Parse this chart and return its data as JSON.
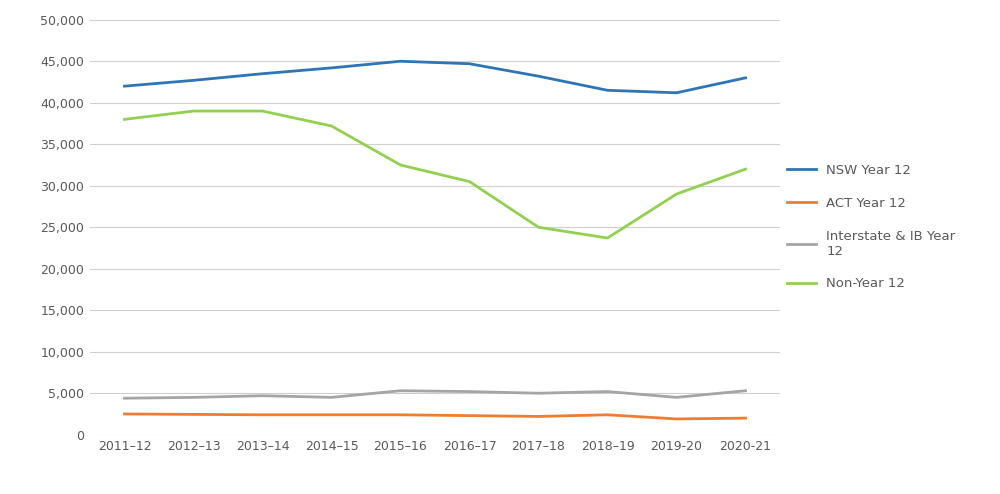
{
  "categories": [
    "2011–12",
    "2012–13",
    "2013–14",
    "2014–15",
    "2015–16",
    "2016–17",
    "2017–18",
    "2018–19",
    "2019-20",
    "2020-21"
  ],
  "series": {
    "NSW Year 12": {
      "values": [
        42000,
        42700,
        43500,
        44200,
        45000,
        44700,
        43200,
        41500,
        41200,
        43000
      ],
      "color": "#2E75B6",
      "linewidth": 2.0
    },
    "ACT Year 12": {
      "values": [
        2500,
        2450,
        2400,
        2400,
        2400,
        2300,
        2200,
        2400,
        1900,
        2000
      ],
      "color": "#ED7D31",
      "linewidth": 2.0
    },
    "Interstate & IB Year 12": {
      "values": [
        4400,
        4500,
        4700,
        4500,
        5300,
        5200,
        5000,
        5200,
        4500,
        5300
      ],
      "color": "#A5A5A5",
      "linewidth": 2.0
    },
    "Non-Year 12": {
      "values": [
        38000,
        39000,
        39000,
        37200,
        32500,
        30500,
        25000,
        23700,
        29000,
        32000
      ],
      "color": "#92D050",
      "linewidth": 2.0
    }
  },
  "ylim": [
    0,
    50000
  ],
  "yticks": [
    0,
    5000,
    10000,
    15000,
    20000,
    25000,
    30000,
    35000,
    40000,
    45000,
    50000
  ],
  "background_color": "#ffffff",
  "grid_color": "#D0D0D0",
  "legend_labels": [
    "NSW Year 12",
    "ACT Year 12",
    "Interstate & IB Year 12",
    "Non-Year 12"
  ],
  "legend_display": [
    "NSW Year 12",
    "ACT Year 12",
    "Interstate & IB Year\n12",
    "Non-Year 12"
  ]
}
